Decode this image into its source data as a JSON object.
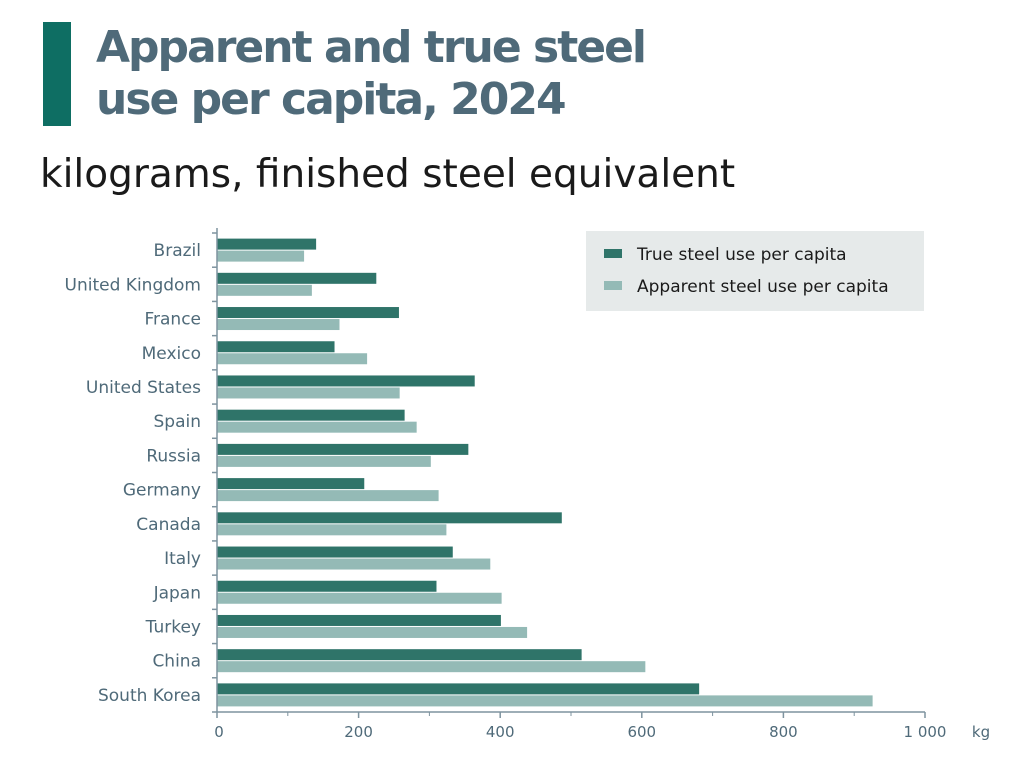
{
  "title_line1": "Apparent and true steel",
  "title_line2": "use per capita, 2024",
  "subtitle": "kilograms, finished steel equivalent",
  "colors": {
    "accent_bar": "#0e6e63",
    "title_text": "#4f6a79",
    "axis": "#7e939f",
    "legend_bg": "#e6eaea"
  },
  "chart_data": {
    "type": "bar",
    "orientation": "horizontal",
    "categories": [
      "Brazil",
      "United Kingdom",
      "France",
      "Mexico",
      "United States",
      "Spain",
      "Russia",
      "Germany",
      "Canada",
      "Italy",
      "Japan",
      "Turkey",
      "China",
      "South Korea"
    ],
    "series": [
      {
        "name": "True steel use per capita",
        "color": "#2f7469",
        "values": [
          140,
          225,
          257,
          166,
          364,
          265,
          355,
          208,
          487,
          333,
          310,
          401,
          515,
          681
        ]
      },
      {
        "name": "Apparent steel use per capita",
        "color": "#94bab6",
        "values": [
          123,
          134,
          173,
          212,
          258,
          282,
          302,
          313,
          324,
          386,
          402,
          438,
          605,
          926
        ]
      }
    ],
    "xlim": [
      0,
      1000
    ],
    "xticks": [
      0,
      200,
      400,
      600,
      800,
      1000
    ],
    "xtick_labels": [
      "0",
      "200",
      "400",
      "600",
      "800",
      "1 000"
    ],
    "xunit": "kg",
    "grid": false,
    "legend_position": "top-right"
  }
}
